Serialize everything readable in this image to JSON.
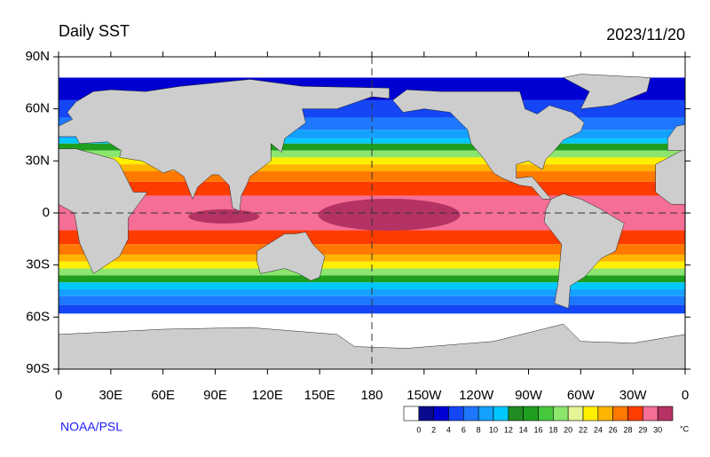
{
  "title": "Daily SST",
  "date": "2023/11/20",
  "credit": "NOAA/PSL",
  "map": {
    "xlim": [
      0,
      360
    ],
    "ylim": [
      -90,
      90
    ],
    "xticks": [
      0,
      {
        "value": 30,
        "label": "30E"
      },
      {
        "value": 60,
        "label": "60E"
      },
      {
        "value": 90,
        "label": "90E"
      },
      {
        "value": 120,
        "label": "120E"
      },
      {
        "value": 150,
        "label": "150E"
      },
      180,
      {
        "value": 210,
        "label": "150W"
      },
      {
        "value": 240,
        "label": "120W"
      },
      {
        "value": 270,
        "label": "90W"
      },
      {
        "value": 300,
        "label": "60W"
      },
      {
        "value": 330,
        "label": "30W"
      },
      {
        "value": 360,
        "label": "0"
      }
    ],
    "yticks": [
      {
        "value": 90,
        "label": "90N"
      },
      {
        "value": 60,
        "label": "60N"
      },
      {
        "value": 30,
        "label": "30N"
      },
      0,
      {
        "value": -30,
        "label": "30S"
      },
      {
        "value": -60,
        "label": "60S"
      },
      {
        "value": -90,
        "label": "90S"
      }
    ]
  },
  "colorbar": {
    "colors": [
      "#ffffff",
      "#0a0a8c",
      "#0000d2",
      "#1446f5",
      "#1e78ff",
      "#14a0ff",
      "#00c8ff",
      "#228b22",
      "#1ea01e",
      "#46c83c",
      "#8ce66e",
      "#e6f596",
      "#fff000",
      "#ffb400",
      "#ff7800",
      "#ff3c00",
      "#f56e96",
      "#b43264"
    ],
    "labels": [
      0,
      2,
      4,
      6,
      8,
      10,
      12,
      14,
      16,
      18,
      20,
      22,
      24,
      26,
      28,
      29,
      30
    ],
    "unit": "°C"
  }
}
